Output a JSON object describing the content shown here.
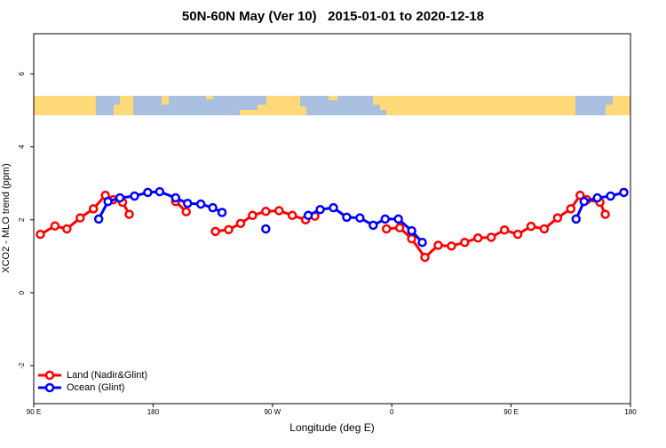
{
  "chart_data": {
    "type": "line",
    "title": "50N-60N May (Ver 10)   2015-01-01 to 2020-12-18",
    "x_label": "Longitude (deg E)",
    "y_label": "XCO2 - MLO trend (ppm)",
    "xlim": [
      90,
      540
    ],
    "xticks": [
      {
        "value": 90,
        "label": "90 E"
      },
      180,
      {
        "value": 270,
        "label": "90 W"
      },
      {
        "value": 360,
        "label": "0"
      },
      {
        "value": 450,
        "label": "90 E"
      },
      {
        "value": 540,
        "label": "180"
      }
    ],
    "ylim": [
      -3.04,
      7.1
    ],
    "yticks": [
      -2,
      0,
      2,
      4,
      6
    ],
    "legend": "bottom-left",
    "series": [
      {
        "name": "Land (Nadir&Glint)",
        "color": "#ff0000",
        "x": [
          95,
          106,
          115,
          125,
          135,
          144,
          150,
          157,
          162,
          null,
          197,
          205,
          null,
          227,
          237,
          246,
          255,
          265,
          275,
          285,
          295,
          302,
          null,
          356,
          366,
          375,
          385,
          395,
          405,
          415,
          425,
          435,
          445,
          455,
          465,
          475,
          485,
          495,
          502,
          507,
          517,
          521
        ],
        "values": [
          1.6,
          1.83,
          1.75,
          2.05,
          2.3,
          2.67,
          2.55,
          2.48,
          2.15,
          null,
          2.5,
          2.22,
          null,
          1.68,
          1.73,
          1.9,
          2.12,
          2.23,
          2.25,
          2.12,
          2.0,
          2.1,
          null,
          1.75,
          1.78,
          1.48,
          0.97,
          1.3,
          1.28,
          1.38,
          1.5,
          1.52,
          1.72,
          1.6,
          1.82,
          1.75,
          2.05,
          2.3,
          2.67,
          2.55,
          2.48,
          2.15
        ]
      },
      {
        "name": "Ocean (Glint)",
        "color": "#0000ff",
        "x": [
          139,
          146,
          155,
          166,
          176,
          185,
          197,
          206,
          216,
          225,
          232,
          null,
          265,
          null,
          297,
          306,
          316,
          326,
          336,
          346,
          355,
          365,
          375,
          383,
          null,
          499,
          505,
          515,
          525,
          535
        ],
        "values": [
          2.02,
          2.5,
          2.6,
          2.65,
          2.75,
          2.77,
          2.6,
          2.45,
          2.43,
          2.33,
          2.2,
          null,
          1.75,
          null,
          2.12,
          2.28,
          2.33,
          2.07,
          2.05,
          1.85,
          2.02,
          2.02,
          1.7,
          1.38,
          null,
          2.02,
          2.5,
          2.6,
          2.65,
          2.75
        ]
      }
    ]
  }
}
